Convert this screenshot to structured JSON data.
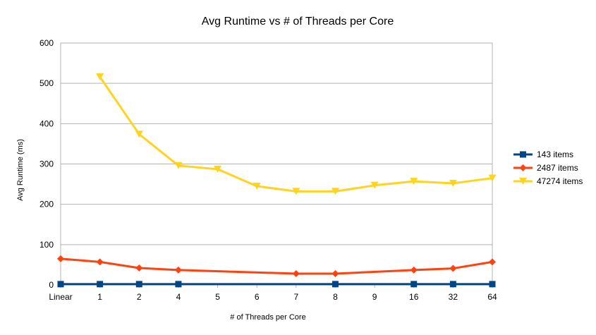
{
  "chart_data": {
    "type": "line",
    "title": "Avg Runtime vs # of Threads per Core",
    "xlabel": "# of Threads per Core",
    "ylabel": "Avg Runtime (ms)",
    "categories": [
      "Linear",
      "1",
      "2",
      "4",
      "5",
      "6",
      "7",
      "8",
      "9",
      "16",
      "32",
      "64"
    ],
    "ylim": [
      0,
      600
    ],
    "yticks": [
      0,
      100,
      200,
      300,
      400,
      500,
      600
    ],
    "grid": true,
    "legend_position": "right",
    "series": [
      {
        "name": "143 items",
        "color": "#004586",
        "marker": "square",
        "values": [
          2,
          2,
          2,
          2,
          null,
          null,
          null,
          2,
          null,
          2,
          2,
          2
        ]
      },
      {
        "name": "2487 items",
        "color": "#ff420e",
        "marker": "diamond",
        "values": [
          65,
          57,
          42,
          37,
          null,
          null,
          28,
          28,
          null,
          37,
          41,
          57
        ]
      },
      {
        "name": "47274 items",
        "color": "#ffd320",
        "marker": "triangle-down",
        "values": [
          null,
          516,
          374,
          296,
          287,
          245,
          232,
          232,
          247,
          257,
          252,
          265
        ]
      }
    ]
  }
}
